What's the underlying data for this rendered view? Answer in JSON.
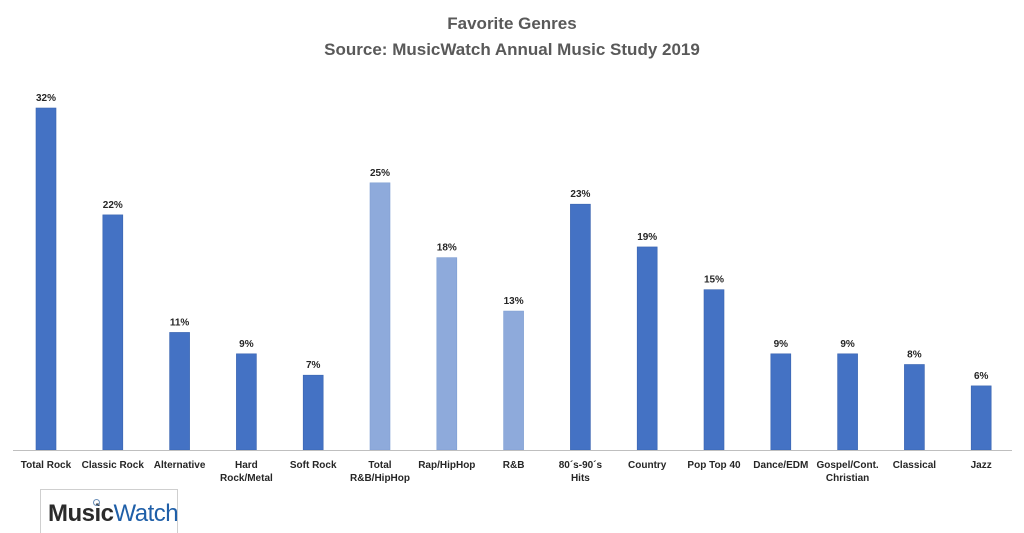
{
  "chart_data": {
    "type": "bar",
    "title": "Favorite Genres",
    "subtitle": "Source: MusicWatch Annual Music Study 2019",
    "categories": [
      [
        "Total Rock"
      ],
      [
        "Classic Rock"
      ],
      [
        "Alternative"
      ],
      [
        "Hard",
        "Rock/Metal"
      ],
      [
        "Soft Rock"
      ],
      [
        "Total",
        "R&B/HipHop"
      ],
      [
        "Rap/HipHop"
      ],
      [
        "R&B"
      ],
      [
        "80´s-90´s",
        "Hits"
      ],
      [
        "Country"
      ],
      [
        "Pop Top 40"
      ],
      [
        "Dance/EDM"
      ],
      [
        "Gospel/Cont.",
        "Christian"
      ],
      [
        "Classical"
      ],
      [
        "Jazz"
      ]
    ],
    "values": [
      32,
      22,
      11,
      9,
      7,
      25,
      18,
      13,
      23,
      19,
      15,
      9,
      9,
      8,
      6
    ],
    "data_labels": [
      "32%",
      "22%",
      "11%",
      "9%",
      "7%",
      "25%",
      "18%",
      "13%",
      "23%",
      "19%",
      "15%",
      "9%",
      "9%",
      "8%",
      "6%"
    ],
    "series_group": [
      "rock",
      "rock",
      "rock",
      "rock",
      "rock",
      "rnb",
      "rnb",
      "rnb",
      "other",
      "other",
      "other",
      "other",
      "other",
      "other",
      "other"
    ],
    "colors": {
      "rock": "#4472c4",
      "rnb": "#8eaadb",
      "other": "#4472c4",
      "axis": "#bfbfbf",
      "title": "#595959"
    },
    "xlabel": "",
    "ylabel": "",
    "ylim": [
      0,
      32
    ],
    "grid": false,
    "legend": "none"
  },
  "logo": {
    "music": "Music",
    "watch": "Watch"
  }
}
